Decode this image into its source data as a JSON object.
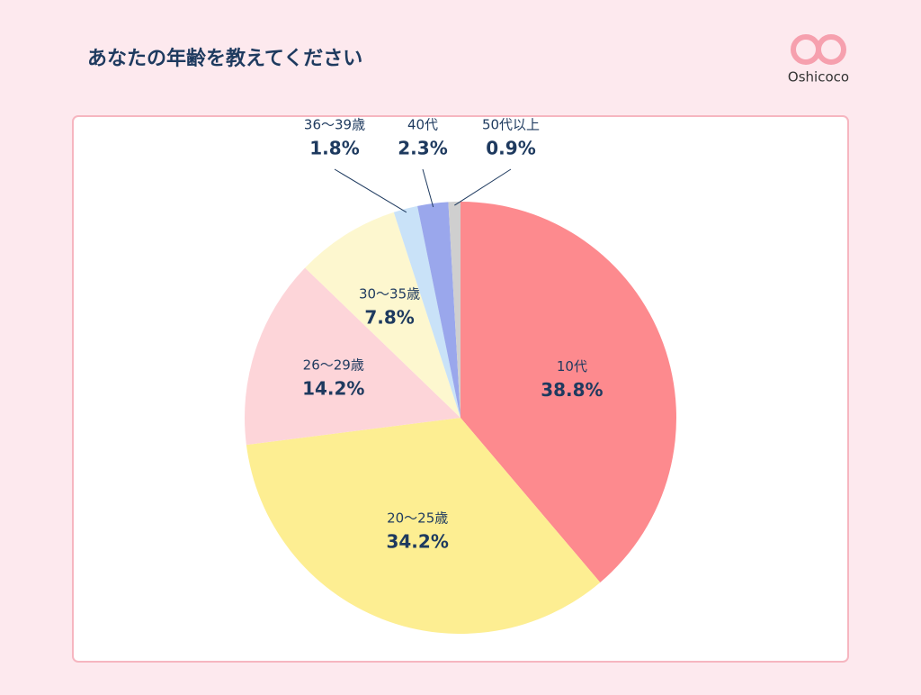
{
  "brand": "Oshicoco",
  "chart_data": {
    "type": "pie",
    "title": "あなたの年齢を教えてください",
    "categories": [
      "10代",
      "20〜25歳",
      "26〜29歳",
      "30〜35歳",
      "36〜39歳",
      "40代",
      "50代以上"
    ],
    "values": [
      38.8,
      34.2,
      14.2,
      7.8,
      1.8,
      2.3,
      0.9
    ],
    "value_labels": [
      "38.8%",
      "34.2%",
      "14.2%",
      "7.8%",
      "1.8%",
      "2.3%",
      "0.9%"
    ],
    "colors": [
      "#fd8a8e",
      "#fdee92",
      "#fdd5d9",
      "#fdf7cf",
      "#c9e2f8",
      "#9aa7ec",
      "#cfcfcf"
    ]
  }
}
